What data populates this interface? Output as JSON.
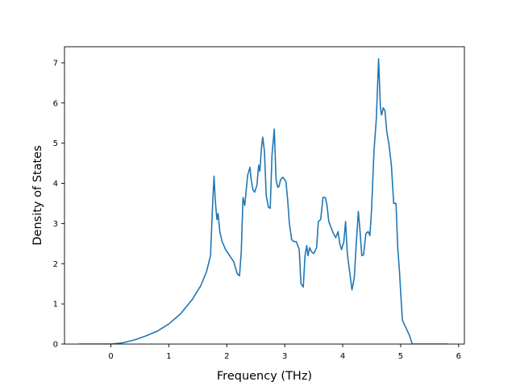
{
  "chart_data": {
    "type": "line",
    "title": "",
    "xlabel": "Frequency (THz)",
    "ylabel": "Density of States",
    "xlim": [
      -0.8,
      6.1
    ],
    "ylim": [
      0,
      7.4
    ],
    "xticks": [
      0,
      1,
      2,
      3,
      4,
      5,
      6
    ],
    "yticks": [
      0,
      1,
      2,
      3,
      4,
      5,
      6,
      7
    ],
    "grid": false,
    "legend": "none",
    "line_color": "#1f77b4",
    "series": [
      {
        "x": [
          -0.55,
          -0.3,
          -0.1,
          0.0,
          0.2,
          0.4,
          0.6,
          0.8,
          1.0,
          1.2,
          1.4,
          1.55,
          1.65,
          1.72,
          1.75,
          1.78,
          1.8,
          1.83,
          1.85,
          1.88,
          1.92,
          1.98,
          2.05,
          2.12,
          2.18,
          2.22,
          2.25,
          2.28,
          2.31,
          2.33,
          2.36,
          2.4,
          2.42,
          2.45,
          2.48,
          2.52,
          2.55,
          2.57,
          2.6,
          2.62,
          2.65,
          2.68,
          2.72,
          2.75,
          2.78,
          2.82,
          2.85,
          2.88,
          2.9,
          2.93,
          2.97,
          3.02,
          3.05,
          3.08,
          3.12,
          3.16,
          3.2,
          3.25,
          3.28,
          3.32,
          3.35,
          3.38,
          3.4,
          3.43,
          3.46,
          3.5,
          3.55,
          3.58,
          3.62,
          3.66,
          3.7,
          3.73,
          3.76,
          3.8,
          3.84,
          3.88,
          3.92,
          3.95,
          3.98,
          4.02,
          4.05,
          4.08,
          4.12,
          4.16,
          4.2,
          4.23,
          4.27,
          4.3,
          4.33,
          4.36,
          4.4,
          4.44,
          4.47,
          4.5,
          4.54,
          4.58,
          4.62,
          4.65,
          4.67,
          4.7,
          4.73,
          4.76,
          4.8,
          4.84,
          4.88,
          4.92,
          4.95,
          4.98,
          5.0,
          5.03,
          5.06,
          5.1,
          5.15,
          5.2,
          5.25,
          5.3,
          5.5,
          5.82
        ],
        "values": [
          0,
          0,
          0,
          0,
          0.03,
          0.1,
          0.2,
          0.32,
          0.5,
          0.75,
          1.1,
          1.45,
          1.8,
          2.2,
          3.3,
          4.18,
          3.6,
          3.1,
          3.25,
          2.8,
          2.55,
          2.35,
          2.2,
          2.05,
          1.75,
          1.7,
          2.3,
          3.65,
          3.45,
          3.75,
          4.2,
          4.4,
          4.1,
          3.85,
          3.78,
          3.95,
          4.45,
          4.3,
          4.9,
          5.15,
          4.8,
          3.7,
          3.4,
          3.38,
          4.7,
          5.35,
          4.1,
          3.9,
          3.92,
          4.1,
          4.15,
          4.05,
          3.6,
          3.0,
          2.6,
          2.55,
          2.55,
          2.35,
          1.5,
          1.42,
          2.2,
          2.45,
          2.2,
          2.4,
          2.3,
          2.25,
          2.4,
          3.05,
          3.1,
          3.65,
          3.65,
          3.45,
          3.05,
          2.9,
          2.75,
          2.65,
          2.8,
          2.5,
          2.35,
          2.55,
          3.05,
          2.25,
          1.8,
          1.35,
          1.65,
          2.4,
          3.3,
          2.8,
          2.2,
          2.22,
          2.75,
          2.8,
          2.7,
          3.4,
          4.8,
          5.6,
          7.1,
          5.9,
          5.7,
          5.88,
          5.8,
          5.3,
          4.95,
          4.45,
          3.5,
          3.5,
          2.4,
          1.8,
          1.3,
          0.6,
          0.5,
          0.38,
          0.22,
          0.0,
          0.0,
          0.0,
          0.0,
          0.0
        ]
      }
    ]
  }
}
